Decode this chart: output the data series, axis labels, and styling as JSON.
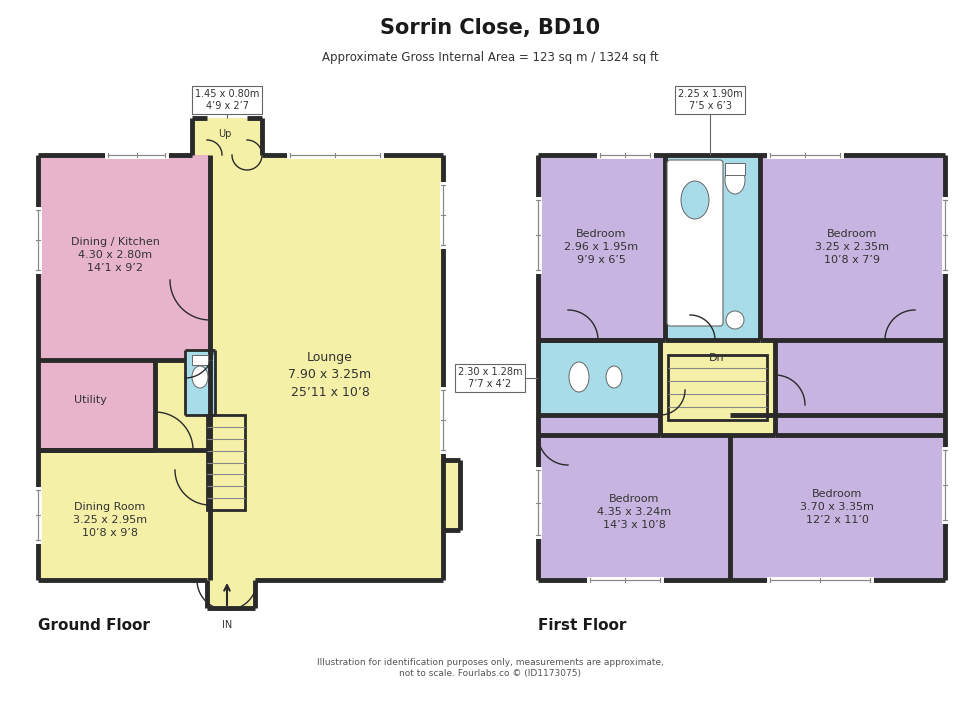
{
  "title": "Sorrin Close, BD10",
  "subtitle": "Approximate Gross Internal Area = 123 sq m / 1324 sq ft",
  "footer": "Illustration for identification purposes only, measurements are approximate,\nnot to scale. Fourlabs.co © (ID1173075)",
  "bg_color": "#ffffff",
  "wall_color": "#2a2a2a",
  "colors": {
    "pink": "#e8b4cc",
    "yellow": "#f5f0a8",
    "blue": "#a8dce8",
    "purple": "#c8b4e0",
    "white": "#ffffff"
  },
  "ground_floor_label": "Ground Floor",
  "first_floor_label": "First Floor",
  "room_labels": {
    "dining_kitchen": "Dining / Kitchen\n4.30 x 2.80m\n14’1 x 9’2",
    "utility": "Utility",
    "lounge": "Lounge\n7.90 x 3.25m\n25’11 x 10’8",
    "dining_room": "Dining Room\n3.25 x 2.95m\n10’8 x 9’8",
    "bed1": "Bedroom\n2.96 x 1.95m\n9’9 x 6’5",
    "bed2": "Bedroom\n3.25 x 2.35m\n10’8 x 7’9",
    "bed3": "Bedroom\n4.35 x 3.24m\n14’3 x 10’8",
    "bed4": "Bedroom\n3.70 x 3.35m\n12’2 x 11’0",
    "landing": "Dn"
  },
  "annotations": {
    "porch": "1.45 x 0.80m\n4’9 x 2’7",
    "bathroom": "2.25 x 1.90m\n7’5 x 6’3",
    "ensuite": "2.30 x 1.28m\n7’7 x 4’2",
    "up": "Up",
    "in": "IN"
  }
}
